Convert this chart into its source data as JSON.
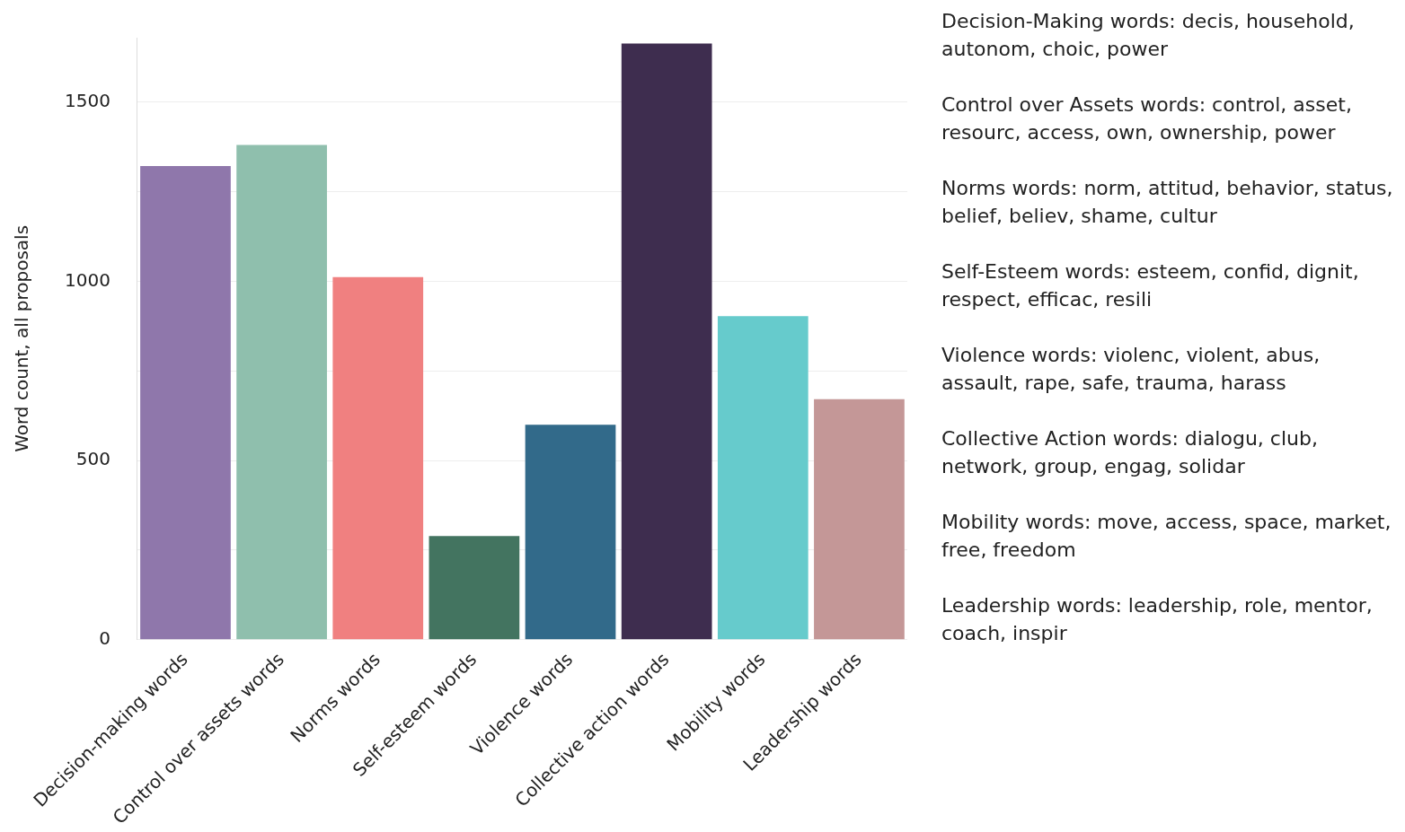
{
  "chart_data": {
    "type": "bar",
    "ylabel": "Word count, all proposals",
    "categories": [
      "Decision-making words",
      "Control over assets words",
      "Norms words",
      "Self-esteem words",
      "Violence words",
      "Collective action words",
      "Mobility words",
      "Leadership words"
    ],
    "values": [
      1322,
      1381,
      1012,
      289,
      600,
      1664,
      903,
      671
    ],
    "colors": [
      "#8f77ab",
      "#8fbfad",
      "#f08080",
      "#437460",
      "#326a8a",
      "#3e2d4f",
      "#66cbcc",
      "#c49797"
    ],
    "ylim": [
      0,
      1680
    ],
    "yticks": [
      0,
      {
        "value": 250,
        "label": null
      },
      500,
      {
        "value": 750,
        "label": null
      },
      1000,
      {
        "value": 1250,
        "label": null
      },
      1500
    ],
    "grid": "y",
    "legend": false,
    "annotations": [
      "Decision-Making words: decis, household, autonom, choic, power",
      "Control over Assets words: control, asset, resourc, access, own, ownership, power",
      "Norms words: norm, attitud, behavior, status, belief, believ, shame, cultur",
      "Self-Esteem words: esteem, confid, dignit, respect, efficac, resili",
      "Violence words: violenc, violent, abus, assault, rape, safe, trauma, harass",
      "Collective Action words: dialogu, club, network, group, engag, solidar",
      "Mobility words: move, access, space, market, free, freedom",
      "Leadership words: leadership, role, mentor, coach, inspir"
    ]
  }
}
